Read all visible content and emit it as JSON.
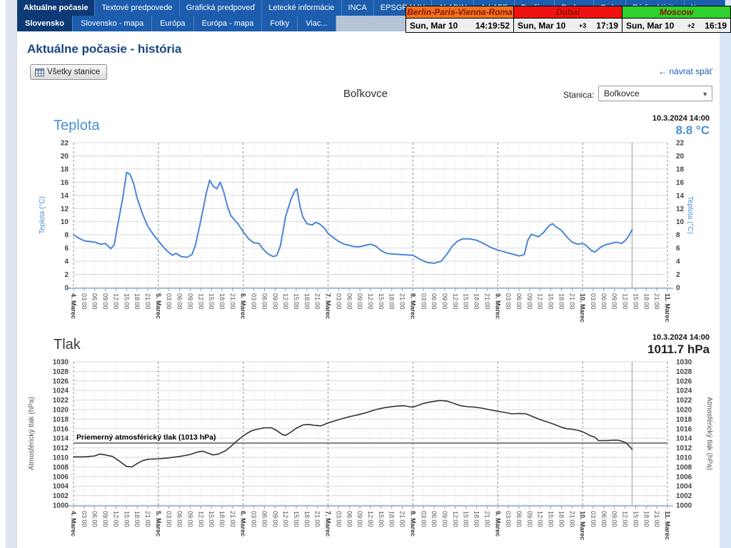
{
  "nav": {
    "row1": [
      {
        "label": "Aktuálne počasie",
        "active": true
      },
      {
        "label": "Textové predpovede",
        "active": false
      },
      {
        "label": "Grafická predpoveď",
        "active": false
      },
      {
        "label": "Letecké informácie",
        "active": false
      },
      {
        "label": "INCA",
        "active": false
      },
      {
        "label": "EPSGRAMY",
        "active": false
      },
      {
        "label": "ALADIN",
        "active": false
      },
      {
        "label": "A-LAFF",
        "active": false
      },
      {
        "label": "Družice",
        "active": false
      },
      {
        "label": "Radary",
        "active": false
      },
      {
        "label": "Ozón",
        "active": false
      },
      {
        "label": "Rádioaktivita",
        "active": false
      },
      {
        "label": "Kamery",
        "active": false
      }
    ],
    "row2": [
      {
        "label": "Slovensko",
        "active": true
      },
      {
        "label": "Slovensko - mapa",
        "active": false
      },
      {
        "label": "Európa",
        "active": false
      },
      {
        "label": "Európa - mapa",
        "active": false
      },
      {
        "label": "Fotky",
        "active": false
      },
      {
        "label": "Viac...",
        "active": false
      }
    ]
  },
  "clocks": [
    {
      "title": "Berlin-Paris-Vienna-Roma",
      "header_color": "#ef7320",
      "date": "Sun, Mar 10",
      "offset": "",
      "time": "14:19:52"
    },
    {
      "title": "Dubai",
      "header_color": "#f01212",
      "date": "Sun, Mar 10",
      "offset": "+3",
      "time": "17:19"
    },
    {
      "title": "Moscow",
      "header_color": "#2ed02e",
      "date": "Sun, Mar 10",
      "offset": "+2",
      "time": "16:19"
    }
  ],
  "page": {
    "title": "Aktuálne počasie - história",
    "all_stations_button": "Všetky stanice",
    "back_arrow": "←",
    "back_link": "návrat späť",
    "station_title": "Boľkovce",
    "station_label": "Stanica:",
    "station_value": "Boľkovce",
    "select_caret": "▼"
  },
  "chart_data": [
    {
      "type": "line",
      "title": "Teplota",
      "timestamp": "10.3.2024 14:00",
      "current_value": "8.8 °C",
      "ylabel": "Teplota (°C)",
      "ylabel_color": "#4a90d9",
      "series_color": "#4a86d8",
      "line_width": 2,
      "ylim": [
        0,
        22
      ],
      "ytick": 2,
      "x_range_hours": [
        0,
        168
      ],
      "day_labels": [
        "4. Marec",
        "5. Marec",
        "6. Marec",
        "7. Marec",
        "8. Marec",
        "9. Marec",
        "10. Marec",
        "11. Marec"
      ],
      "hour_labels": [
        "03:00",
        "06:00",
        "09:00",
        "12:00",
        "15:00",
        "18:00",
        "21:00"
      ],
      "now_hour": 158,
      "grid": true,
      "legend": false,
      "points": [
        [
          0,
          8.0
        ],
        [
          1.5,
          7.5
        ],
        [
          3,
          7.1
        ],
        [
          4.5,
          7.0
        ],
        [
          6,
          6.9
        ],
        [
          7.5,
          6.6
        ],
        [
          9,
          6.7
        ],
        [
          10,
          6.2
        ],
        [
          10.5,
          5.9
        ],
        [
          11.5,
          6.5
        ],
        [
          12.5,
          9.5
        ],
        [
          14,
          13.8
        ],
        [
          15,
          17.5
        ],
        [
          16,
          17.2
        ],
        [
          17,
          15.8
        ],
        [
          18,
          13.6
        ],
        [
          19.5,
          11.2
        ],
        [
          21,
          9.3
        ],
        [
          22.5,
          8.1
        ],
        [
          24,
          7.1
        ],
        [
          25.5,
          6.1
        ],
        [
          27,
          5.3
        ],
        [
          28,
          4.9
        ],
        [
          29,
          5.2
        ],
        [
          30.5,
          4.7
        ],
        [
          32,
          4.6
        ],
        [
          33.5,
          5.0
        ],
        [
          34.5,
          6.5
        ],
        [
          36,
          10.2
        ],
        [
          37.5,
          14.2
        ],
        [
          38.5,
          16.3
        ],
        [
          39.5,
          15.4
        ],
        [
          40.5,
          15.0
        ],
        [
          41.5,
          16.0
        ],
        [
          42.5,
          14.5
        ],
        [
          43.5,
          12.4
        ],
        [
          44.5,
          10.9
        ],
        [
          45.5,
          10.3
        ],
        [
          46.5,
          9.7
        ],
        [
          48,
          8.5
        ],
        [
          49.5,
          7.4
        ],
        [
          51,
          6.8
        ],
        [
          52.5,
          6.7
        ],
        [
          53.5,
          5.9
        ],
        [
          55,
          5.1
        ],
        [
          56.5,
          4.7
        ],
        [
          57.5,
          4.9
        ],
        [
          58.5,
          6.3
        ],
        [
          60,
          10.8
        ],
        [
          61.5,
          13.4
        ],
        [
          62.5,
          14.6
        ],
        [
          63.2,
          15.0
        ],
        [
          64,
          12.5
        ],
        [
          64.8,
          10.8
        ],
        [
          66,
          9.7
        ],
        [
          67.5,
          9.5
        ],
        [
          68.5,
          9.9
        ],
        [
          69.5,
          9.7
        ],
        [
          71,
          9.0
        ],
        [
          72,
          8.2
        ],
        [
          73.5,
          7.6
        ],
        [
          75,
          7.0
        ],
        [
          76.5,
          6.6
        ],
        [
          78,
          6.4
        ],
        [
          79.5,
          6.2
        ],
        [
          81,
          6.2
        ],
        [
          82.5,
          6.4
        ],
        [
          84,
          6.6
        ],
        [
          85.5,
          6.3
        ],
        [
          87,
          5.6
        ],
        [
          88.5,
          5.2
        ],
        [
          90,
          5.1
        ],
        [
          93,
          5.0
        ],
        [
          96,
          4.9
        ],
        [
          98,
          4.3
        ],
        [
          100,
          3.8
        ],
        [
          102,
          3.7
        ],
        [
          104,
          4.0
        ],
        [
          105.5,
          5.0
        ],
        [
          107,
          6.2
        ],
        [
          108.5,
          7.0
        ],
        [
          110,
          7.4
        ],
        [
          112,
          7.4
        ],
        [
          114,
          7.2
        ],
        [
          116,
          6.7
        ],
        [
          118,
          6.1
        ],
        [
          120,
          5.7
        ],
        [
          122,
          5.4
        ],
        [
          124,
          5.1
        ],
        [
          126,
          4.8
        ],
        [
          127.5,
          5.0
        ],
        [
          128.5,
          7.2
        ],
        [
          129.5,
          8.1
        ],
        [
          130.5,
          7.9
        ],
        [
          131.5,
          7.7
        ],
        [
          133,
          8.4
        ],
        [
          134.5,
          9.4
        ],
        [
          135.5,
          9.7
        ],
        [
          136.5,
          9.2
        ],
        [
          138,
          8.7
        ],
        [
          139.5,
          7.7
        ],
        [
          141,
          6.9
        ],
        [
          142.5,
          6.6
        ],
        [
          144,
          6.7
        ],
        [
          145,
          6.4
        ],
        [
          146.5,
          5.6
        ],
        [
          147.5,
          5.4
        ],
        [
          149,
          6.1
        ],
        [
          150.5,
          6.5
        ],
        [
          152,
          6.7
        ],
        [
          153.5,
          6.9
        ],
        [
          155,
          6.7
        ],
        [
          156,
          7.1
        ],
        [
          157,
          7.8
        ],
        [
          158,
          8.8
        ]
      ]
    },
    {
      "type": "line",
      "title": "Tlak",
      "timestamp": "10.3.2024 14:00",
      "current_value": "1011.7 hPa",
      "ylabel": "Atmosférický tlak (hPa)",
      "ylabel_color": "#555555",
      "series_color": "#333333",
      "line_width": 1.6,
      "ylim": [
        1000,
        1030
      ],
      "ytick": 2,
      "x_range_hours": [
        0,
        168
      ],
      "day_labels": [
        "4. Marec",
        "5. Marec",
        "6. Marec",
        "7. Marec",
        "8. Marec",
        "9. Marec",
        "10. Marec",
        "11. Marec"
      ],
      "hour_labels": [
        "03:00",
        "06:00",
        "09:00",
        "12:00",
        "15:00",
        "18:00",
        "21:00"
      ],
      "now_hour": 158,
      "grid": true,
      "legend": false,
      "avg_line": {
        "value": 1013,
        "label": "Priemerný atmosférický tlak (1013 hPa)"
      },
      "points": [
        [
          0,
          1010.1
        ],
        [
          3,
          1010.1
        ],
        [
          6,
          1010.3
        ],
        [
          7.5,
          1010.7
        ],
        [
          9,
          1010.5
        ],
        [
          11,
          1010.2
        ],
        [
          13,
          1009.2
        ],
        [
          15,
          1008.1
        ],
        [
          16.5,
          1008.0
        ],
        [
          18,
          1008.7
        ],
        [
          19.5,
          1009.3
        ],
        [
          21,
          1009.6
        ],
        [
          24,
          1009.7
        ],
        [
          27,
          1009.9
        ],
        [
          30,
          1010.2
        ],
        [
          33,
          1010.6
        ],
        [
          35,
          1011.1
        ],
        [
          36.5,
          1011.3
        ],
        [
          38,
          1010.9
        ],
        [
          39.5,
          1010.5
        ],
        [
          41,
          1010.7
        ],
        [
          43,
          1011.4
        ],
        [
          44.5,
          1012.3
        ],
        [
          46,
          1013.3
        ],
        [
          47.5,
          1014.2
        ],
        [
          49,
          1015.0
        ],
        [
          50.5,
          1015.6
        ],
        [
          52,
          1015.9
        ],
        [
          54,
          1016.2
        ],
        [
          56,
          1016.2
        ],
        [
          57.5,
          1015.6
        ],
        [
          59,
          1014.8
        ],
        [
          60,
          1014.6
        ],
        [
          61.5,
          1015.3
        ],
        [
          63,
          1016.1
        ],
        [
          65,
          1016.8
        ],
        [
          66.5,
          1016.9
        ],
        [
          68,
          1016.7
        ],
        [
          70,
          1016.6
        ],
        [
          72,
          1017.2
        ],
        [
          75,
          1017.9
        ],
        [
          78,
          1018.5
        ],
        [
          81,
          1019.0
        ],
        [
          83,
          1019.4
        ],
        [
          85.5,
          1020.0
        ],
        [
          88,
          1020.4
        ],
        [
          91,
          1020.7
        ],
        [
          93.5,
          1020.8
        ],
        [
          95,
          1020.6
        ],
        [
          96,
          1020.5
        ],
        [
          97.5,
          1020.9
        ],
        [
          99,
          1021.3
        ],
        [
          101,
          1021.6
        ],
        [
          103.5,
          1021.9
        ],
        [
          105.5,
          1021.8
        ],
        [
          107.5,
          1021.3
        ],
        [
          109.5,
          1020.8
        ],
        [
          111.5,
          1020.6
        ],
        [
          113.5,
          1020.5
        ],
        [
          115.5,
          1020.3
        ],
        [
          117.5,
          1020.0
        ],
        [
          119.5,
          1019.7
        ],
        [
          122,
          1019.4
        ],
        [
          124,
          1019.1
        ],
        [
          126,
          1019.2
        ],
        [
          128,
          1019.1
        ],
        [
          130,
          1018.5
        ],
        [
          132,
          1017.9
        ],
        [
          134,
          1017.4
        ],
        [
          136,
          1016.9
        ],
        [
          138,
          1016.3
        ],
        [
          139.5,
          1016.0
        ],
        [
          141,
          1015.9
        ],
        [
          143,
          1015.6
        ],
        [
          144.5,
          1015.2
        ],
        [
          146,
          1014.6
        ],
        [
          147.5,
          1014.2
        ],
        [
          148.5,
          1013.5
        ],
        [
          150.5,
          1013.5
        ],
        [
          152.5,
          1013.6
        ],
        [
          154,
          1013.6
        ],
        [
          155.5,
          1013.3
        ],
        [
          156.5,
          1012.9
        ],
        [
          158,
          1011.7
        ]
      ]
    }
  ]
}
